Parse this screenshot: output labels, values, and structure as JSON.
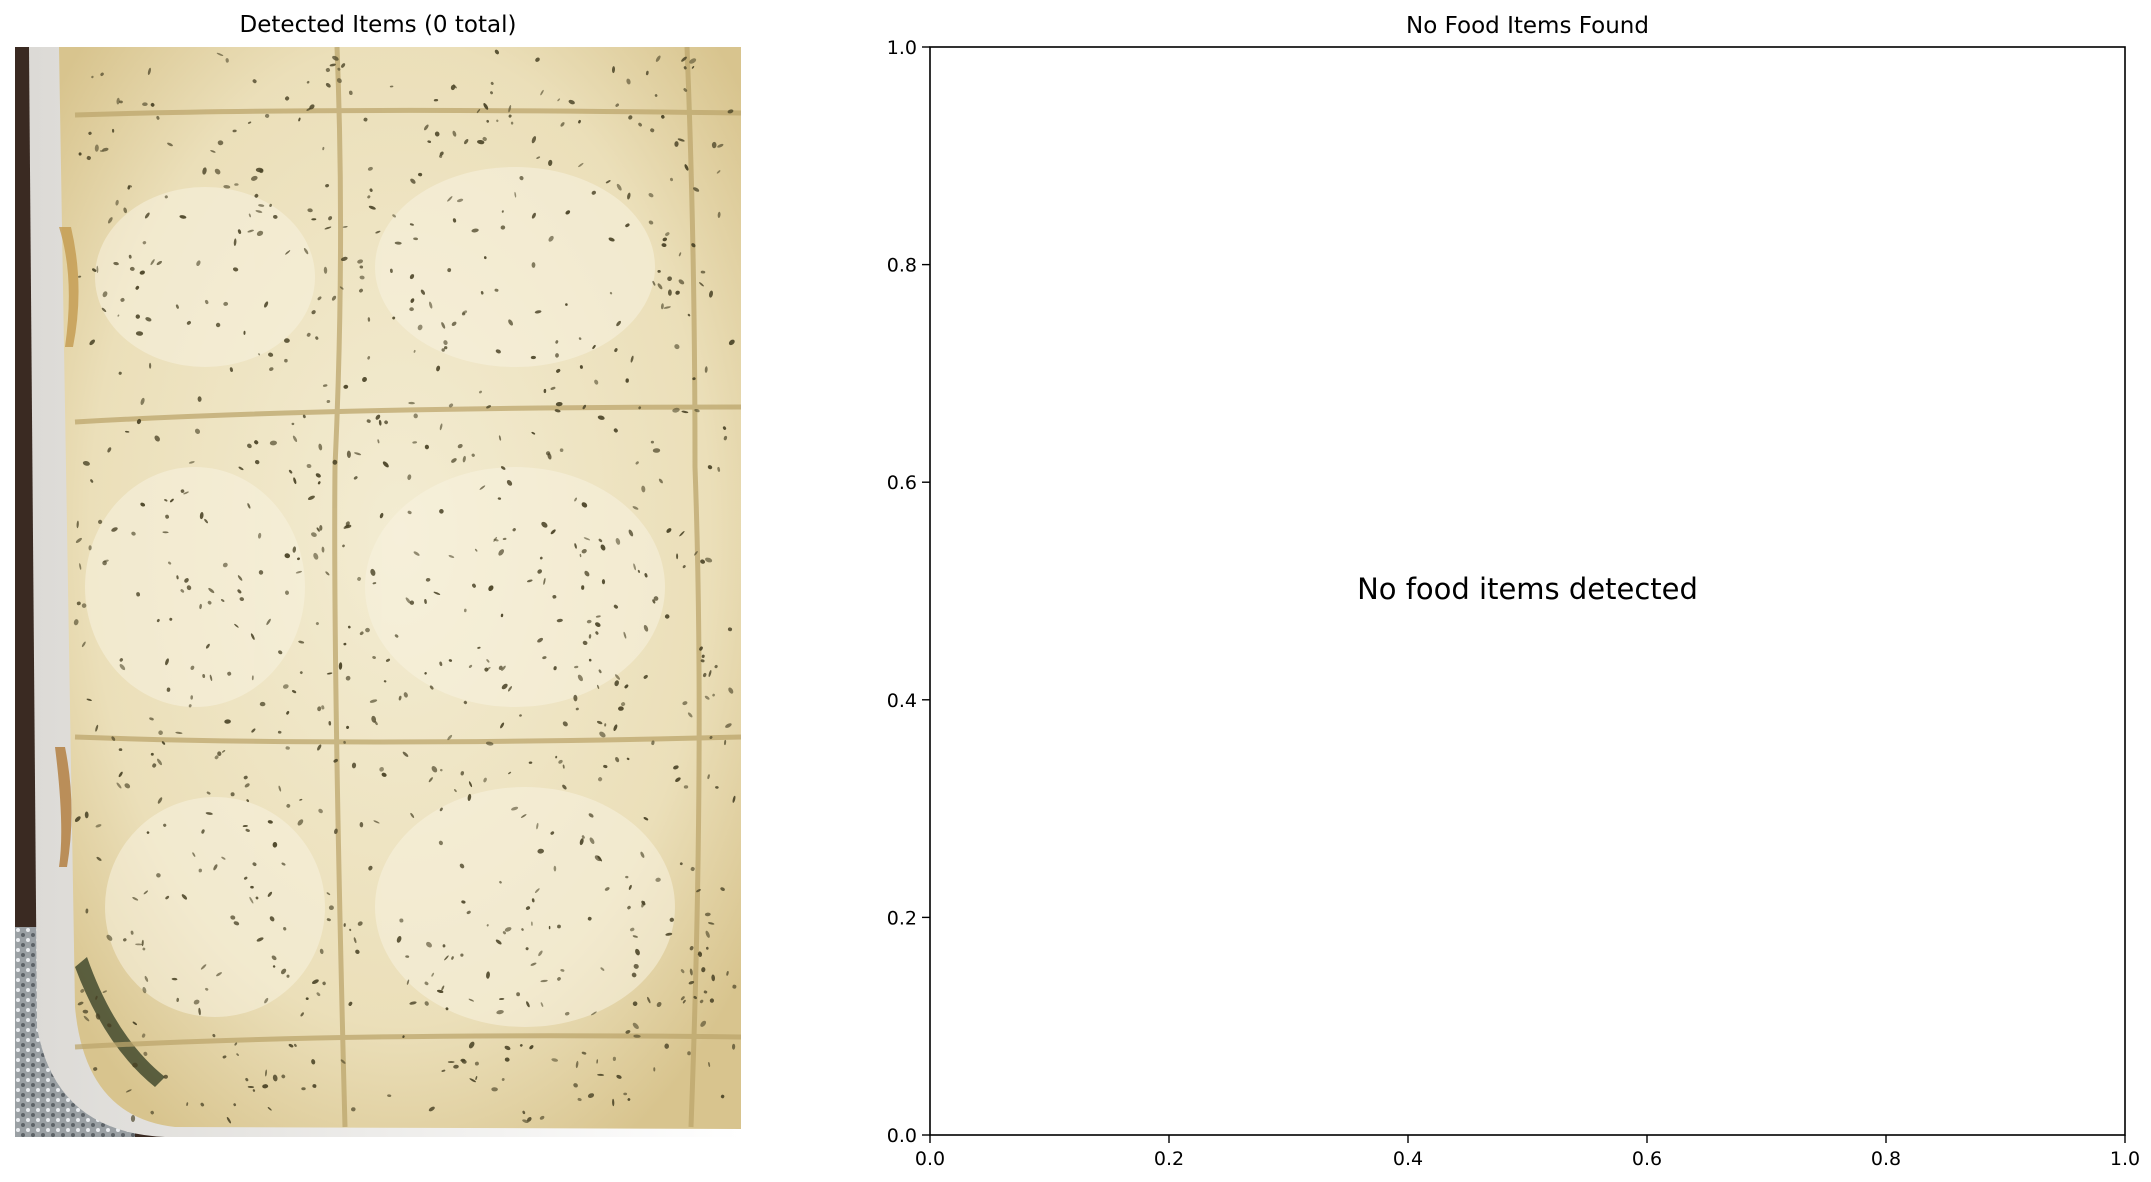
{
  "figure": {
    "left_title": "Detected Items (0 total)",
    "right_title": "No Food Items Found"
  },
  "photo": {
    "subject": "baked cheese lasagna in white dish",
    "colors": {
      "cheese": "#efe6c6",
      "cheese_shadow": "#d9c793",
      "crust": "#c9a45c",
      "herb": "#4a4326",
      "dish": "#f7f6f4",
      "table": "#3a2a22"
    }
  },
  "chart_data": {
    "type": "scatter",
    "title": "No Food Items Found",
    "xlabel": "",
    "ylabel": "",
    "xlim": [
      0.0,
      1.0
    ],
    "ylim": [
      0.0,
      1.0
    ],
    "xticks": [
      "0.0",
      "0.2",
      "0.4",
      "0.6",
      "0.8",
      "1.0"
    ],
    "yticks": [
      "0.0",
      "0.2",
      "0.4",
      "0.6",
      "0.8",
      "1.0"
    ],
    "series": [],
    "grid": false,
    "annotation": {
      "text": "No food items detected",
      "x": 0.5,
      "y": 0.5
    }
  }
}
